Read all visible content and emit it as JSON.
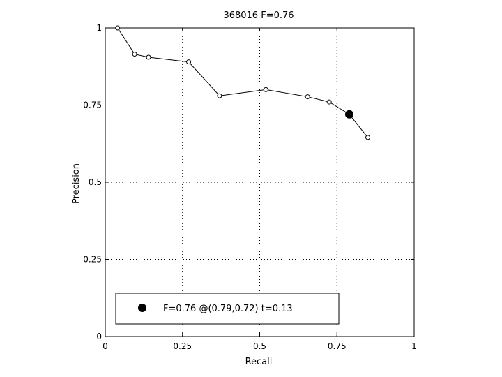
{
  "chart_data": {
    "type": "line",
    "title": "368016 F=0.76",
    "xlabel": "Recall",
    "ylabel": "Precision",
    "xlim": [
      0,
      1
    ],
    "ylim": [
      0,
      1
    ],
    "xticks": [
      0,
      0.25,
      0.5,
      0.75,
      1
    ],
    "xtick_labels": [
      "0",
      "0.25",
      "0.5",
      "0.75",
      "1"
    ],
    "yticks": [
      0,
      0.25,
      0.5,
      0.75,
      1
    ],
    "ytick_labels": [
      "0",
      "0.25",
      "0.5",
      "0.75",
      "1"
    ],
    "grid": true,
    "grid_style": "dotted",
    "series": [
      {
        "points": [
          {
            "x": 0.04,
            "y": 1.0
          },
          {
            "x": 0.095,
            "y": 0.915
          },
          {
            "x": 0.14,
            "y": 0.905
          },
          {
            "x": 0.27,
            "y": 0.89
          },
          {
            "x": 0.37,
            "y": 0.78
          },
          {
            "x": 0.52,
            "y": 0.8
          },
          {
            "x": 0.655,
            "y": 0.777
          },
          {
            "x": 0.725,
            "y": 0.76
          },
          {
            "x": 0.79,
            "y": 0.72
          },
          {
            "x": 0.85,
            "y": 0.645
          }
        ],
        "marker": "open-circle",
        "color": "#000000"
      }
    ],
    "highlight_point": {
      "x": 0.79,
      "y": 0.72,
      "marker": "filled-circle",
      "color": "#000000"
    },
    "legend": {
      "placement": "bottom-left",
      "entries": [
        {
          "label": "F=0.76 @(0.79,0.72) t=0.13",
          "marker": "filled-circle"
        }
      ]
    }
  }
}
